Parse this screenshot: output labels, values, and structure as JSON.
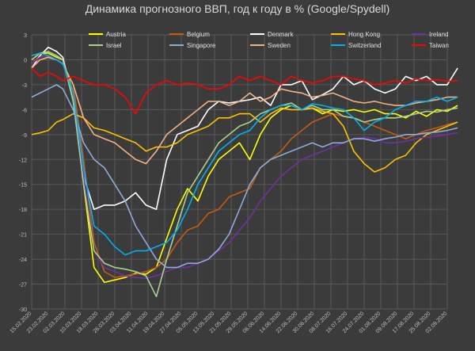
{
  "chart_data": {
    "type": "line",
    "title": "Динамика прогнозного ВВП, год к году в % (Google/Spydell)",
    "xlabel": "",
    "ylabel": "",
    "ylim": [
      -30,
      3
    ],
    "yticks": [
      3,
      0,
      -3,
      -6,
      -9,
      -12,
      -15,
      -18,
      -21,
      -24,
      -27,
      -30
    ],
    "x_tick_labels": [
      "15.02.2020",
      "23.02.2020",
      "02.03.2020",
      "10.03.2020",
      "18.03.2020",
      "26.03.2020",
      "03.04.2020",
      "11.04.2020",
      "19.04.2020",
      "27.04.2020",
      "05.05.2020",
      "13.05.2020",
      "21.05.2020",
      "29.05.2020",
      "06.06.2020",
      "14.06.2020",
      "22.06.2020",
      "30.06.2020",
      "08.07.2020",
      "16.07.2020",
      "24.07.2020",
      "01.08.2020",
      "09.08.2020",
      "17.08.2020",
      "25.08.2020",
      "02.09.2020"
    ],
    "x_start": "15.02.2020",
    "grid": true,
    "legend": "top",
    "series": [
      {
        "name": "Austria",
        "color": "#ffff00",
        "x": [
          0,
          4,
          8,
          12,
          15,
          20,
          25,
          30,
          35,
          40,
          45,
          50,
          55,
          60,
          65,
          70,
          75,
          80,
          85,
          90,
          95,
          100,
          105,
          110,
          115,
          120,
          125,
          130,
          135,
          140,
          145,
          150,
          155,
          160,
          165,
          170,
          175,
          180,
          185,
          190,
          195,
          200,
          205
        ],
        "values": [
          0,
          0.8,
          0.8,
          0.3,
          0,
          -4,
          -15,
          -25,
          -26.8,
          -26.5,
          -26.2,
          -25.7,
          -25.8,
          -25,
          -21.5,
          -18,
          -15.5,
          -17,
          -14,
          -12,
          -11,
          -10,
          -12,
          -9,
          -7,
          -6,
          -5.5,
          -6,
          -5.8,
          -6.5,
          -6,
          -6.2,
          -6,
          -6.3,
          -6,
          -6.5,
          -6.5,
          -7,
          -6.2,
          -6.8,
          -6,
          -6.2,
          -5.5
        ]
      },
      {
        "name": "Belgium",
        "color": "#c55a11",
        "x": [
          0,
          4,
          8,
          12,
          15,
          20,
          25,
          30,
          35,
          40,
          45,
          50,
          55,
          60,
          65,
          70,
          75,
          80,
          85,
          90,
          95,
          100,
          105,
          110,
          115,
          120,
          125,
          130,
          135,
          140,
          145,
          150,
          155,
          160,
          165,
          170,
          175,
          180,
          185,
          190,
          195,
          200,
          205
        ],
        "values": [
          -0.5,
          0.5,
          0.3,
          0,
          -0.5,
          -3,
          -12,
          -22,
          -25.5,
          -26.2,
          -26,
          -25.8,
          -25.5,
          -25,
          -24,
          -22,
          -20.5,
          -20,
          -18.5,
          -18,
          -16.5,
          -16,
          -15.5,
          -13,
          -12,
          -11,
          -9.5,
          -8.5,
          -7.5,
          -7,
          -6.5,
          -6.8,
          -7,
          -7.5,
          -8,
          -8.5,
          -9,
          -9.5,
          -9,
          -8.5,
          -8.2,
          -7.8,
          -7.5
        ]
      },
      {
        "name": "Denmark",
        "color": "#ffffff",
        "x": [
          0,
          4,
          8,
          12,
          15,
          20,
          25,
          30,
          35,
          40,
          45,
          50,
          55,
          60,
          65,
          70,
          75,
          80,
          85,
          90,
          95,
          100,
          105,
          110,
          115,
          120,
          125,
          130,
          135,
          140,
          145,
          150,
          155,
          160,
          165,
          170,
          175,
          180,
          185,
          190,
          195,
          200,
          205
        ],
        "values": [
          -1,
          0.5,
          1.5,
          1,
          0.3,
          -5,
          -14,
          -18,
          -17.5,
          -17.5,
          -17,
          -16,
          -17.5,
          -18,
          -12,
          -9,
          -8.5,
          -8,
          -6,
          -5,
          -5.2,
          -5,
          -4.8,
          -4.5,
          -5.5,
          -3,
          -3,
          -2.5,
          -4.8,
          -4.2,
          -3.5,
          -2,
          -3,
          -2.5,
          -3.5,
          -4,
          -3.5,
          -2,
          -2.5,
          -2,
          -3,
          -3,
          -1
        ]
      },
      {
        "name": "Hong Kong",
        "color": "#ffc000",
        "x": [
          0,
          4,
          8,
          12,
          15,
          20,
          25,
          30,
          35,
          40,
          45,
          50,
          55,
          60,
          65,
          70,
          75,
          80,
          85,
          90,
          95,
          100,
          105,
          110,
          115,
          120,
          125,
          130,
          135,
          140,
          145,
          150,
          155,
          160,
          165,
          170,
          175,
          180,
          185,
          190,
          195,
          200,
          205
        ],
        "values": [
          -9,
          -8.8,
          -8.5,
          -7.5,
          -7.2,
          -6.5,
          -7,
          -8.2,
          -8.5,
          -9,
          -9.5,
          -10,
          -11,
          -10.5,
          -10.5,
          -10,
          -9,
          -8.5,
          -8,
          -7,
          -7,
          -6.5,
          -6.5,
          -7.5,
          -6.5,
          -5.8,
          -6,
          -6,
          -5.8,
          -6.2,
          -6.5,
          -8,
          -11,
          -12.5,
          -13.5,
          -13,
          -12,
          -11.5,
          -10,
          -9,
          -8.5,
          -8,
          -7.5
        ]
      },
      {
        "name": "Ireland",
        "color": "#7030a0",
        "x": [
          0,
          4,
          8,
          12,
          15,
          20,
          25,
          30,
          35,
          40,
          45,
          50,
          55,
          60,
          65,
          70,
          75,
          80,
          85,
          90,
          95,
          100,
          105,
          110,
          115,
          120,
          125,
          130,
          135,
          140,
          145,
          150,
          155,
          160,
          165,
          170,
          175,
          180,
          185,
          190,
          195,
          200,
          205
        ],
        "values": [
          -0.5,
          0.3,
          0.5,
          0,
          -0.5,
          -4,
          -14,
          -23,
          -25,
          -25.5,
          -26,
          -26.2,
          -26.3,
          -26,
          -25.5,
          -25,
          -25,
          -24.5,
          -24,
          -23,
          -22,
          -20.5,
          -19,
          -17,
          -15.5,
          -14,
          -13,
          -12,
          -11.5,
          -11,
          -10.5,
          -10,
          -9.5,
          -9.3,
          -9.5,
          -10,
          -10,
          -9.8,
          -9.5,
          -9.3,
          -9.2,
          -9,
          -8.8
        ]
      },
      {
        "name": "Israel",
        "color": "#a9d18e",
        "x": [
          0,
          4,
          8,
          12,
          15,
          20,
          25,
          30,
          35,
          40,
          45,
          50,
          55,
          60,
          65,
          70,
          75,
          80,
          85,
          90,
          95,
          100,
          105,
          110,
          115,
          120,
          125,
          130,
          135,
          140,
          145,
          150,
          155,
          160,
          165,
          170,
          175,
          180,
          185,
          190,
          195,
          200,
          205
        ],
        "values": [
          0,
          0.8,
          1,
          0.5,
          0,
          -5,
          -15,
          -23,
          -24.5,
          -25,
          -25.2,
          -25.5,
          -26,
          -28.5,
          -24,
          -20,
          -16,
          -14,
          -12,
          -10,
          -9,
          -8,
          -7.5,
          -6.5,
          -6,
          -5.5,
          -5.2,
          -6,
          -5.5,
          -6,
          -6,
          -6.8,
          -7,
          -7.5,
          -7.2,
          -7,
          -7,
          -6.8,
          -6.5,
          -6.2,
          -6.3,
          -6,
          -5.8
        ]
      },
      {
        "name": "Singapore",
        "color": "#8faadc",
        "x": [
          0,
          4,
          8,
          12,
          15,
          20,
          25,
          30,
          35,
          40,
          45,
          50,
          55,
          60,
          65,
          70,
          75,
          80,
          85,
          90,
          95,
          100,
          105,
          110,
          115,
          120,
          125,
          130,
          135,
          140,
          145,
          150,
          155,
          160,
          165,
          170,
          175,
          180,
          185,
          190,
          195,
          200,
          205
        ],
        "values": [
          -4.5,
          -4,
          -3.5,
          -3,
          -3.5,
          -6,
          -10,
          -12,
          -13,
          -15,
          -17,
          -20,
          -22,
          -24,
          -25,
          -25,
          -24.5,
          -24.5,
          -24,
          -22.8,
          -21,
          -18,
          -15,
          -13,
          -12,
          -11.5,
          -11,
          -10.5,
          -10,
          -10.5,
          -10,
          -10,
          -9.5,
          -9.5,
          -9.8,
          -9.5,
          -9.3,
          -9,
          -9,
          -8.8,
          -8.7,
          -8.5,
          -8.2
        ]
      },
      {
        "name": "Sweden",
        "color": "#f4b183",
        "x": [
          0,
          4,
          8,
          12,
          15,
          20,
          25,
          30,
          35,
          40,
          45,
          50,
          55,
          60,
          65,
          70,
          75,
          80,
          85,
          90,
          95,
          100,
          105,
          110,
          115,
          120,
          125,
          130,
          135,
          140,
          145,
          150,
          155,
          160,
          165,
          170,
          175,
          180,
          185,
          190,
          195,
          200,
          205
        ],
        "values": [
          -1,
          0,
          0.3,
          0,
          -0.5,
          -3,
          -7,
          -9,
          -9.5,
          -10,
          -11,
          -12,
          -12.5,
          -11,
          -9,
          -8,
          -7,
          -6,
          -5,
          -5,
          -5.5,
          -5,
          -4,
          -5,
          -4.5,
          -3.5,
          -3.8,
          -4,
          -4.5,
          -4.3,
          -4,
          -4.5,
          -5,
          -5.2,
          -5,
          -5.3,
          -5.5,
          -5.5,
          -5.2,
          -5,
          -4.8,
          -4.5,
          -4.5
        ]
      },
      {
        "name": "Switzerland",
        "color": "#00b0f0",
        "x": [
          0,
          4,
          8,
          12,
          15,
          20,
          25,
          30,
          35,
          40,
          45,
          50,
          55,
          60,
          65,
          70,
          75,
          80,
          85,
          90,
          95,
          100,
          105,
          110,
          115,
          120,
          125,
          130,
          135,
          140,
          145,
          150,
          155,
          160,
          165,
          170,
          175,
          180,
          185,
          190,
          195,
          200,
          205
        ],
        "values": [
          0.5,
          0.8,
          0.5,
          0,
          -0.5,
          -4,
          -13,
          -20,
          -21,
          -22.5,
          -23.5,
          -23,
          -23,
          -22.5,
          -22,
          -20.5,
          -18,
          -15,
          -13,
          -11,
          -10,
          -9,
          -8.5,
          -7,
          -6,
          -5.5,
          -5.5,
          -6,
          -5.3,
          -5.5,
          -5.8,
          -6,
          -7,
          -8.5,
          -7.5,
          -7,
          -6,
          -5.5,
          -5,
          -5,
          -4.5,
          -5,
          -4.5
        ]
      },
      {
        "name": "Taiwan",
        "color": "#ff0000",
        "x": [
          0,
          4,
          8,
          12,
          15,
          20,
          25,
          30,
          35,
          40,
          45,
          50,
          55,
          60,
          65,
          70,
          75,
          80,
          85,
          90,
          95,
          100,
          105,
          110,
          115,
          120,
          125,
          130,
          135,
          140,
          145,
          150,
          155,
          160,
          165,
          170,
          175,
          180,
          185,
          190,
          195,
          200,
          205
        ],
        "values": [
          -1,
          -2,
          -1.5,
          -2,
          -2.5,
          -2,
          -2.5,
          -3,
          -3,
          -3.5,
          -4.5,
          -6.5,
          -4,
          -3,
          -2.5,
          -3,
          -2.8,
          -3,
          -3.5,
          -3.5,
          -3,
          -2,
          -2.5,
          -2,
          -2.5,
          -3,
          -2,
          -2.5,
          -2.8,
          -2.5,
          -2,
          -2,
          -2.3,
          -2.5,
          -3,
          -2.8,
          -2.5,
          -2.8,
          -2.3,
          -2.5,
          -2.4,
          -2.6,
          -2.5
        ]
      }
    ]
  }
}
